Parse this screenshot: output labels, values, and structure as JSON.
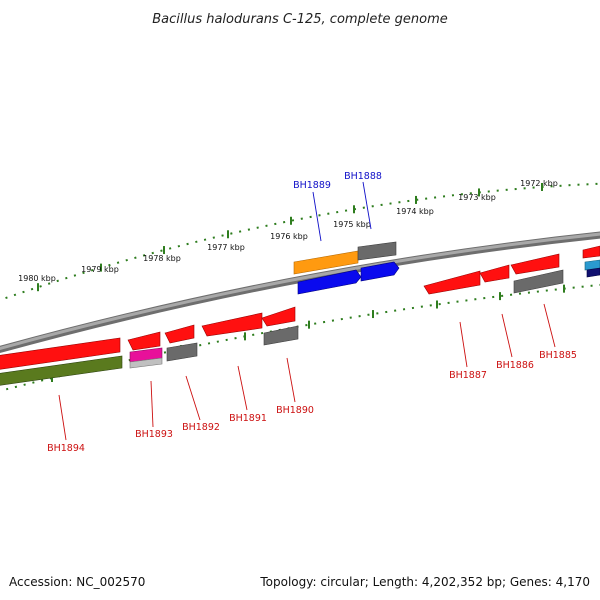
{
  "title": "Bacillus halodurans C-125, complete genome",
  "footer": {
    "accession": "Accession: NC_002570",
    "topology": "Topology: circular; Length: 4,202,352 bp; Genes: 4,170"
  },
  "colors": {
    "backbone": "#8c8c8c",
    "tick": "#2e7d1e",
    "label_plus": "#1010c8",
    "label_minus": "#cc1010",
    "red": "#ff1010",
    "grey": "#6a6a6a",
    "blue": "#0a0aee",
    "orange": "#ff9a10",
    "olive": "#5a7a1e",
    "magenta": "#e8109a",
    "navy": "#101070",
    "cyan": "#2a9ad0"
  },
  "tick_labels": [
    "1980 kbp",
    "1979 kbp",
    "1978 kbp",
    "1977 kbp",
    "1976 kbp",
    "1975 kbp",
    "1974 kbp",
    "1973 kbp",
    "1972 kbp"
  ],
  "genes": [
    {
      "label": "BH1894",
      "strand": "minus"
    },
    {
      "label": "BH1893",
      "strand": "minus"
    },
    {
      "label": "BH1892",
      "strand": "minus"
    },
    {
      "label": "BH1891",
      "strand": "minus"
    },
    {
      "label": "BH1890",
      "strand": "minus"
    },
    {
      "label": "BH1889",
      "strand": "plus"
    },
    {
      "label": "BH1888",
      "strand": "plus"
    },
    {
      "label": "BH1887",
      "strand": "minus"
    },
    {
      "label": "BH1886",
      "strand": "minus"
    },
    {
      "label": "BH1885",
      "strand": "minus"
    }
  ]
}
